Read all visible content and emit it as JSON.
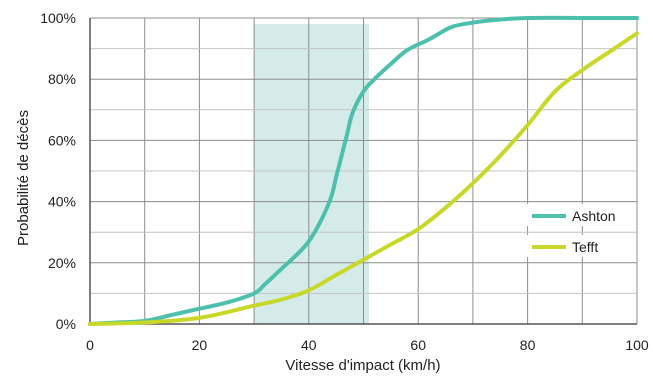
{
  "chart_data": {
    "type": "line",
    "xlabel": "Vitesse d'impact (km/h)",
    "ylabel": "Probabilité de décès",
    "xlim": [
      0,
      100
    ],
    "ylim": [
      0,
      100
    ],
    "x_ticks": [
      "0",
      "20",
      "40",
      "60",
      "80",
      "100"
    ],
    "x_tick_values": [
      0,
      20,
      40,
      60,
      80,
      100
    ],
    "y_ticks": [
      "0%",
      "20%",
      "40%",
      "60%",
      "80%",
      "100%"
    ],
    "y_tick_values": [
      0,
      20,
      40,
      60,
      80,
      100
    ],
    "x_gridlines": [
      0,
      10,
      20,
      30,
      40,
      50,
      60,
      70,
      80,
      90,
      100
    ],
    "y_gridlines": [
      0,
      10,
      20,
      30,
      40,
      50,
      60,
      70,
      80,
      90,
      100
    ],
    "grid": true,
    "legend_position": "right",
    "highlight_band": {
      "x_start": 30,
      "x_end": 51,
      "y_top": 98,
      "color": "#cfe9e7"
    },
    "series": [
      {
        "name": "Ashton",
        "color": "#4dbfad",
        "x": [
          0,
          5,
          10,
          15,
          20,
          25,
          30,
          32,
          35,
          38,
          40,
          42,
          44,
          45,
          46,
          47,
          48,
          50,
          52,
          55,
          58,
          62,
          66,
          70,
          75,
          80,
          90,
          100
        ],
        "y": [
          0,
          0.5,
          1,
          3,
          5,
          7,
          10,
          13,
          18,
          23,
          27,
          33,
          41,
          48,
          55,
          62,
          69,
          76,
          80,
          85,
          89.5,
          93,
          97,
          98.5,
          99.5,
          100,
          100,
          100
        ]
      },
      {
        "name": "Tefft",
        "color": "#c8d829",
        "x": [
          0,
          10,
          20,
          30,
          35,
          40,
          45,
          50,
          55,
          60,
          65,
          70,
          75,
          80,
          85,
          90,
          95,
          100
        ],
        "y": [
          0,
          0.5,
          2,
          6,
          8,
          11,
          16,
          21,
          26,
          31,
          38,
          46,
          55,
          65,
          76,
          83,
          89,
          95
        ]
      }
    ]
  }
}
